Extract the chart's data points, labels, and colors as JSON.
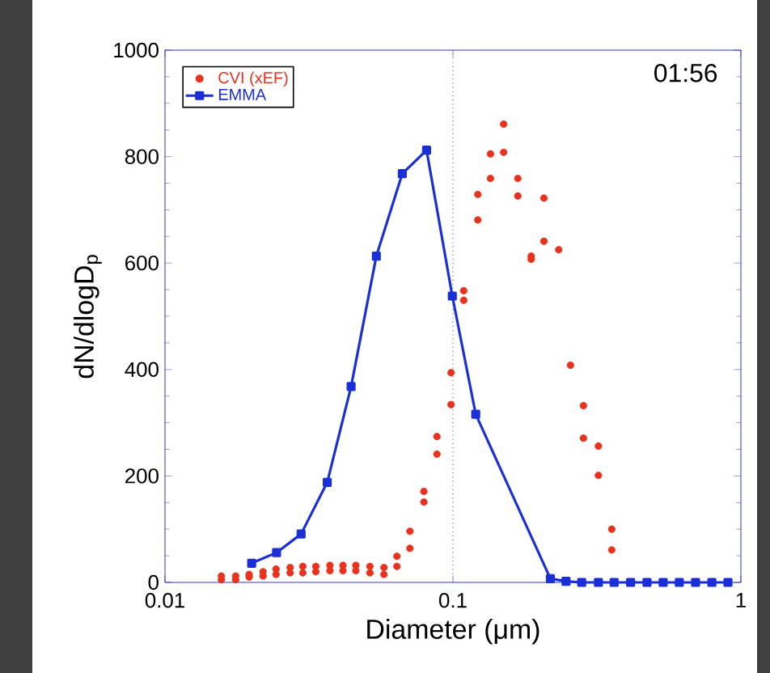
{
  "chart_data": {
    "type": "line",
    "xlabel": "Diameter (μm)",
    "ylabel": "dN/dlogD$_{p}$",
    "log": "x",
    "xlim": [
      0.01,
      1
    ],
    "xticks": [
      0.01,
      0.1,
      1
    ],
    "ylim": [
      0,
      1000
    ],
    "yticks": [
      0,
      200,
      400,
      600,
      800,
      1000
    ],
    "legend": "top left",
    "annotations": [
      "01:56"
    ],
    "ref_lines": [
      {
        "axis": "x",
        "value": 0.1,
        "color": "#6a6ac8",
        "line_style": "dotted"
      }
    ],
    "series": [
      {
        "name": "CVI (xEF)",
        "type": "scatter",
        "marker": "circle",
        "color": "#e8321e",
        "x": [
          0.0157,
          0.0157,
          0.0176,
          0.0176,
          0.0196,
          0.0196,
          0.0219,
          0.0219,
          0.0243,
          0.0243,
          0.0272,
          0.0272,
          0.0301,
          0.0301,
          0.0334,
          0.0334,
          0.0374,
          0.0374,
          0.0415,
          0.0415,
          0.046,
          0.046,
          0.0515,
          0.0515,
          0.0576,
          0.0576,
          0.0639,
          0.0639,
          0.0709,
          0.0709,
          0.0793,
          0.0793,
          0.088,
          0.088,
          0.0985,
          0.0985,
          0.109,
          0.109,
          0.122,
          0.122,
          0.135,
          0.135,
          0.15,
          0.15,
          0.168,
          0.168,
          0.187,
          0.187,
          0.207,
          0.207,
          0.233,
          0.256,
          0.284,
          0.284,
          0.32,
          0.32,
          0.356,
          0.356
        ],
        "values": [
          5,
          12,
          5,
          12,
          10,
          15,
          12,
          20,
          15,
          25,
          18,
          28,
          18,
          30,
          20,
          30,
          22,
          32,
          22,
          32,
          22,
          32,
          18,
          30,
          15,
          28,
          30,
          49,
          64,
          96,
          151,
          171,
          241,
          274,
          334,
          394,
          530,
          548,
          681,
          729,
          759,
          805,
          808,
          861,
          726,
          759,
          607,
          613,
          641,
          722,
          625,
          408,
          271,
          332,
          201,
          256,
          61,
          100
        ]
      },
      {
        "name": "EMMA",
        "marker": "square",
        "color": "#1a2fd6",
        "x": [
          0.02,
          0.0244,
          0.0297,
          0.0366,
          0.0443,
          0.0542,
          0.0667,
          0.081,
          0.0995,
          0.12,
          0.218,
          0.247,
          0.28,
          0.32,
          0.363,
          0.414,
          0.472,
          0.537,
          0.611,
          0.696,
          0.793,
          0.902
        ],
        "values": [
          36,
          56,
          91,
          188,
          368,
          613,
          768,
          812,
          538,
          316,
          7,
          2,
          0,
          0,
          0,
          0,
          0,
          0,
          0,
          0,
          0,
          0
        ]
      }
    ]
  }
}
